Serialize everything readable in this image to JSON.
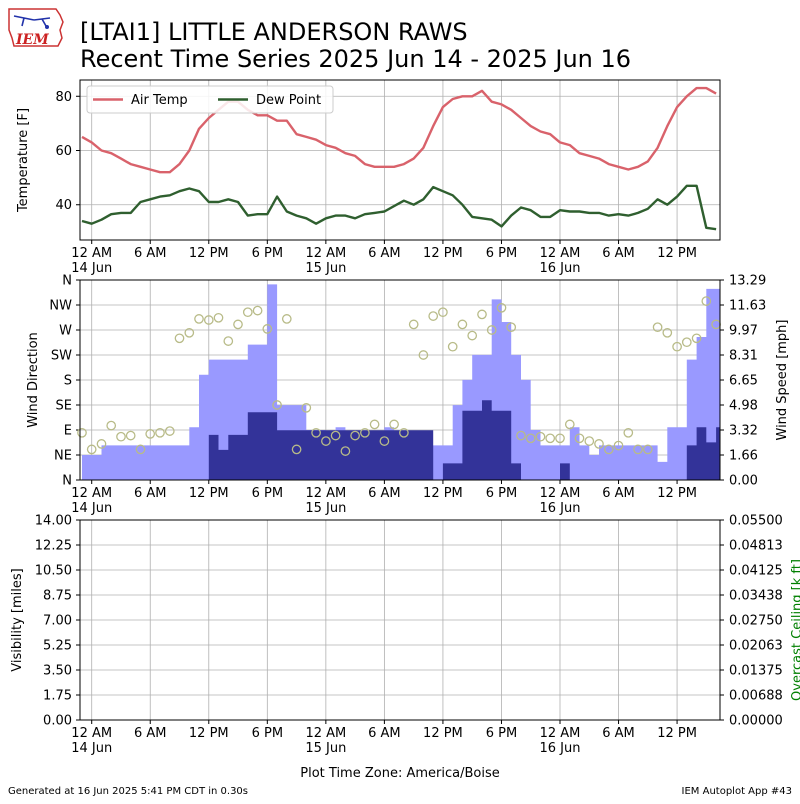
{
  "header": {
    "logo_text": "IEM",
    "title_line1": "[LTAI1] LITTLE ANDERSON RAWS",
    "title_line2": "Recent Time Series 2025 Jun 14 - 2025 Jun 16"
  },
  "footer": {
    "generated": "Generated at 16 Jun 2025 5:41 PM CDT in 0.30s",
    "app": "IEM Autoplot App #43",
    "timezone_label": "Plot Time Zone: America/Boise"
  },
  "colors": {
    "air_temp": "#d9626b",
    "dew_point": "#2f5f2f",
    "wind_speed": "#9999ff",
    "wind_gust": "#333399",
    "wind_dir": "#b8bb88",
    "ceiling_label": "#008000",
    "grid": "#b0b0b0"
  },
  "x_axis": {
    "ticks": [
      {
        "hour": 0,
        "label": "12 AM",
        "date": "14 Jun"
      },
      {
        "hour": 6,
        "label": "6 AM",
        "date": ""
      },
      {
        "hour": 12,
        "label": "12 PM",
        "date": ""
      },
      {
        "hour": 18,
        "label": "6 PM",
        "date": ""
      },
      {
        "hour": 24,
        "label": "12 AM",
        "date": "15 Jun"
      },
      {
        "hour": 30,
        "label": "6 AM",
        "date": ""
      },
      {
        "hour": 36,
        "label": "12 PM",
        "date": ""
      },
      {
        "hour": 42,
        "label": "6 PM",
        "date": ""
      },
      {
        "hour": 48,
        "label": "12 AM",
        "date": "16 Jun"
      },
      {
        "hour": 54,
        "label": "6 AM",
        "date": ""
      },
      {
        "hour": 60,
        "label": "12 PM",
        "date": ""
      }
    ]
  },
  "chart_data": [
    {
      "type": "line",
      "name": "temperature",
      "ylabel": "Temperature [F]",
      "ylim": [
        27,
        86
      ],
      "yticks": [
        40,
        60,
        80
      ],
      "grid": true,
      "legend_position": "top-left",
      "x_hours": [
        -1,
        0,
        1,
        2,
        3,
        4,
        5,
        6,
        7,
        8,
        9,
        10,
        11,
        12,
        13,
        14,
        15,
        16,
        17,
        18,
        19,
        20,
        21,
        22,
        23,
        24,
        25,
        26,
        27,
        28,
        29,
        30,
        31,
        32,
        33,
        34,
        35,
        36,
        37,
        38,
        39,
        40,
        41,
        42,
        43,
        44,
        45,
        46,
        47,
        48,
        49,
        50,
        51,
        52,
        53,
        54,
        55,
        56,
        57,
        58,
        59,
        60,
        61,
        62,
        63,
        64
      ],
      "series": [
        {
          "name": "Air Temp",
          "values": [
            65,
            63,
            60,
            59,
            57,
            55,
            54,
            53,
            52,
            52,
            55,
            60,
            68,
            72,
            75,
            78,
            78,
            75,
            73,
            73,
            71,
            71,
            66,
            65,
            64,
            62,
            61,
            59,
            58,
            55,
            54,
            54,
            54,
            55,
            57,
            61,
            69,
            76,
            79,
            80,
            80,
            82,
            78,
            77,
            75,
            72,
            69,
            67,
            66,
            63,
            62,
            59,
            58,
            57,
            55,
            54,
            53,
            54,
            56,
            61,
            69,
            76,
            80,
            83,
            83,
            81
          ]
        },
        {
          "name": "Dew Point",
          "values": [
            34,
            33,
            34.5,
            36.5,
            37,
            37,
            41,
            42,
            43,
            43.5,
            45,
            46,
            45,
            41,
            41,
            42,
            41,
            36,
            36.5,
            36.5,
            43,
            37.5,
            36,
            35,
            33,
            35,
            36,
            36,
            35,
            36.5,
            37,
            37.5,
            39.5,
            41.5,
            40,
            42,
            46.5,
            45,
            43.5,
            40,
            35.5,
            35,
            34.5,
            32,
            36,
            39,
            38,
            35.5,
            35.5,
            38,
            37.5,
            37.5,
            37,
            37,
            36,
            36.5,
            36,
            37,
            38.5,
            42,
            40,
            43,
            47,
            47,
            31.5,
            31
          ]
        }
      ]
    },
    {
      "type": "bar",
      "name": "wind",
      "ylabel": "Wind Direction",
      "y2label": "Wind Speed [mph]",
      "direction_ticks": [
        "N",
        "NE",
        "E",
        "SE",
        "S",
        "SW",
        "W",
        "NW",
        "N"
      ],
      "speed_ticks": [
        "0.00",
        "1.66",
        "3.32",
        "4.98",
        "6.65",
        "8.31",
        "9.97",
        "11.63",
        "13.29"
      ],
      "speed_ylim": [
        0,
        13.29
      ],
      "grid": true,
      "wind_speed_hours": [
        -1,
        1,
        6,
        9,
        10,
        11,
        12,
        16,
        18,
        19,
        22,
        24,
        25,
        26,
        27,
        28,
        29,
        30,
        31,
        32,
        33,
        34,
        35,
        36,
        37,
        38,
        39,
        40,
        41,
        42,
        43,
        44,
        45,
        46,
        47,
        48,
        49,
        50,
        51,
        52,
        53,
        54,
        55,
        56,
        57,
        58,
        59,
        60,
        61,
        62,
        63,
        64
      ],
      "wind_speed": [
        1.66,
        2.3,
        2.3,
        2.3,
        3.5,
        7,
        8,
        9,
        13,
        4.98,
        3.32,
        1.7,
        3.5,
        2.3,
        1.1,
        2.3,
        2.3,
        3.5,
        2.3,
        2.3,
        2.3,
        2.3,
        2.3,
        2.3,
        4.98,
        6.65,
        8.31,
        8.31,
        12,
        10.5,
        8.31,
        6.65,
        3.32,
        2.3,
        2.3,
        2.3,
        3.5,
        2.3,
        1.66,
        2.3,
        2.3,
        2.3,
        2.3,
        2.3,
        2.3,
        1.2,
        3.5,
        3.5,
        8,
        9.5,
        12.7,
        12.7
      ],
      "wind_gust_hours": [
        -1,
        12,
        13,
        14,
        15,
        16,
        17,
        18,
        19,
        35,
        36,
        37,
        38,
        39,
        40,
        41,
        42,
        43,
        44,
        45,
        46,
        47,
        48,
        49,
        50,
        61,
        62,
        63,
        64
      ],
      "wind_gust": [
        0,
        3,
        2,
        3,
        3,
        4.5,
        4.5,
        4.5,
        3.3,
        0,
        1.1,
        1.1,
        4.6,
        4.6,
        5.3,
        4.6,
        4.6,
        1.1,
        0,
        0,
        0,
        0,
        1.1,
        0,
        0,
        2.3,
        3.5,
        2.5,
        3.5
      ],
      "wind_dir_hours": [
        -1,
        0,
        1,
        2,
        3,
        4,
        5,
        6,
        7,
        8,
        9,
        10,
        11,
        12,
        13,
        14,
        15,
        16,
        17,
        18,
        19,
        20,
        21,
        22,
        23,
        24,
        25,
        26,
        27,
        28,
        29,
        30,
        31,
        32,
        33,
        34,
        35,
        36,
        37,
        38,
        39,
        40,
        41,
        42,
        43,
        44,
        45,
        46,
        47,
        48,
        49,
        50,
        51,
        52,
        53,
        54,
        55,
        56,
        57,
        58,
        59,
        60,
        61,
        62,
        63,
        64
      ],
      "wind_dir_deg": [
        85,
        55,
        65,
        98,
        78,
        80,
        55,
        83,
        85,
        88,
        255,
        265,
        290,
        288,
        292,
        250,
        280,
        302,
        305,
        272,
        135,
        290,
        55,
        130,
        85,
        70,
        80,
        52,
        80,
        85,
        100,
        70,
        100,
        85,
        280,
        225,
        295,
        302,
        240,
        280,
        260,
        298,
        270,
        310,
        275,
        80,
        75,
        78,
        75,
        75,
        100,
        75,
        70,
        65,
        55,
        62,
        85,
        55,
        55,
        275,
        265,
        240,
        248,
        255,
        322,
        280
      ]
    },
    {
      "type": "line",
      "name": "visibility",
      "ylabel": "Visibility [miles]",
      "y2label": "Overcast Ceiling [k ft]",
      "ylim": [
        0,
        14
      ],
      "yticks": [
        "0.00",
        "1.75",
        "3.50",
        "5.25",
        "7.00",
        "8.75",
        "10.50",
        "12.25",
        "14.00"
      ],
      "y2lim": [
        0,
        0.055
      ],
      "y2ticks": [
        "0.00000",
        "0.00688",
        "0.01375",
        "0.02063",
        "0.02750",
        "0.03438",
        "0.04125",
        "0.04813",
        "0.05500"
      ],
      "grid": true,
      "series": []
    }
  ]
}
